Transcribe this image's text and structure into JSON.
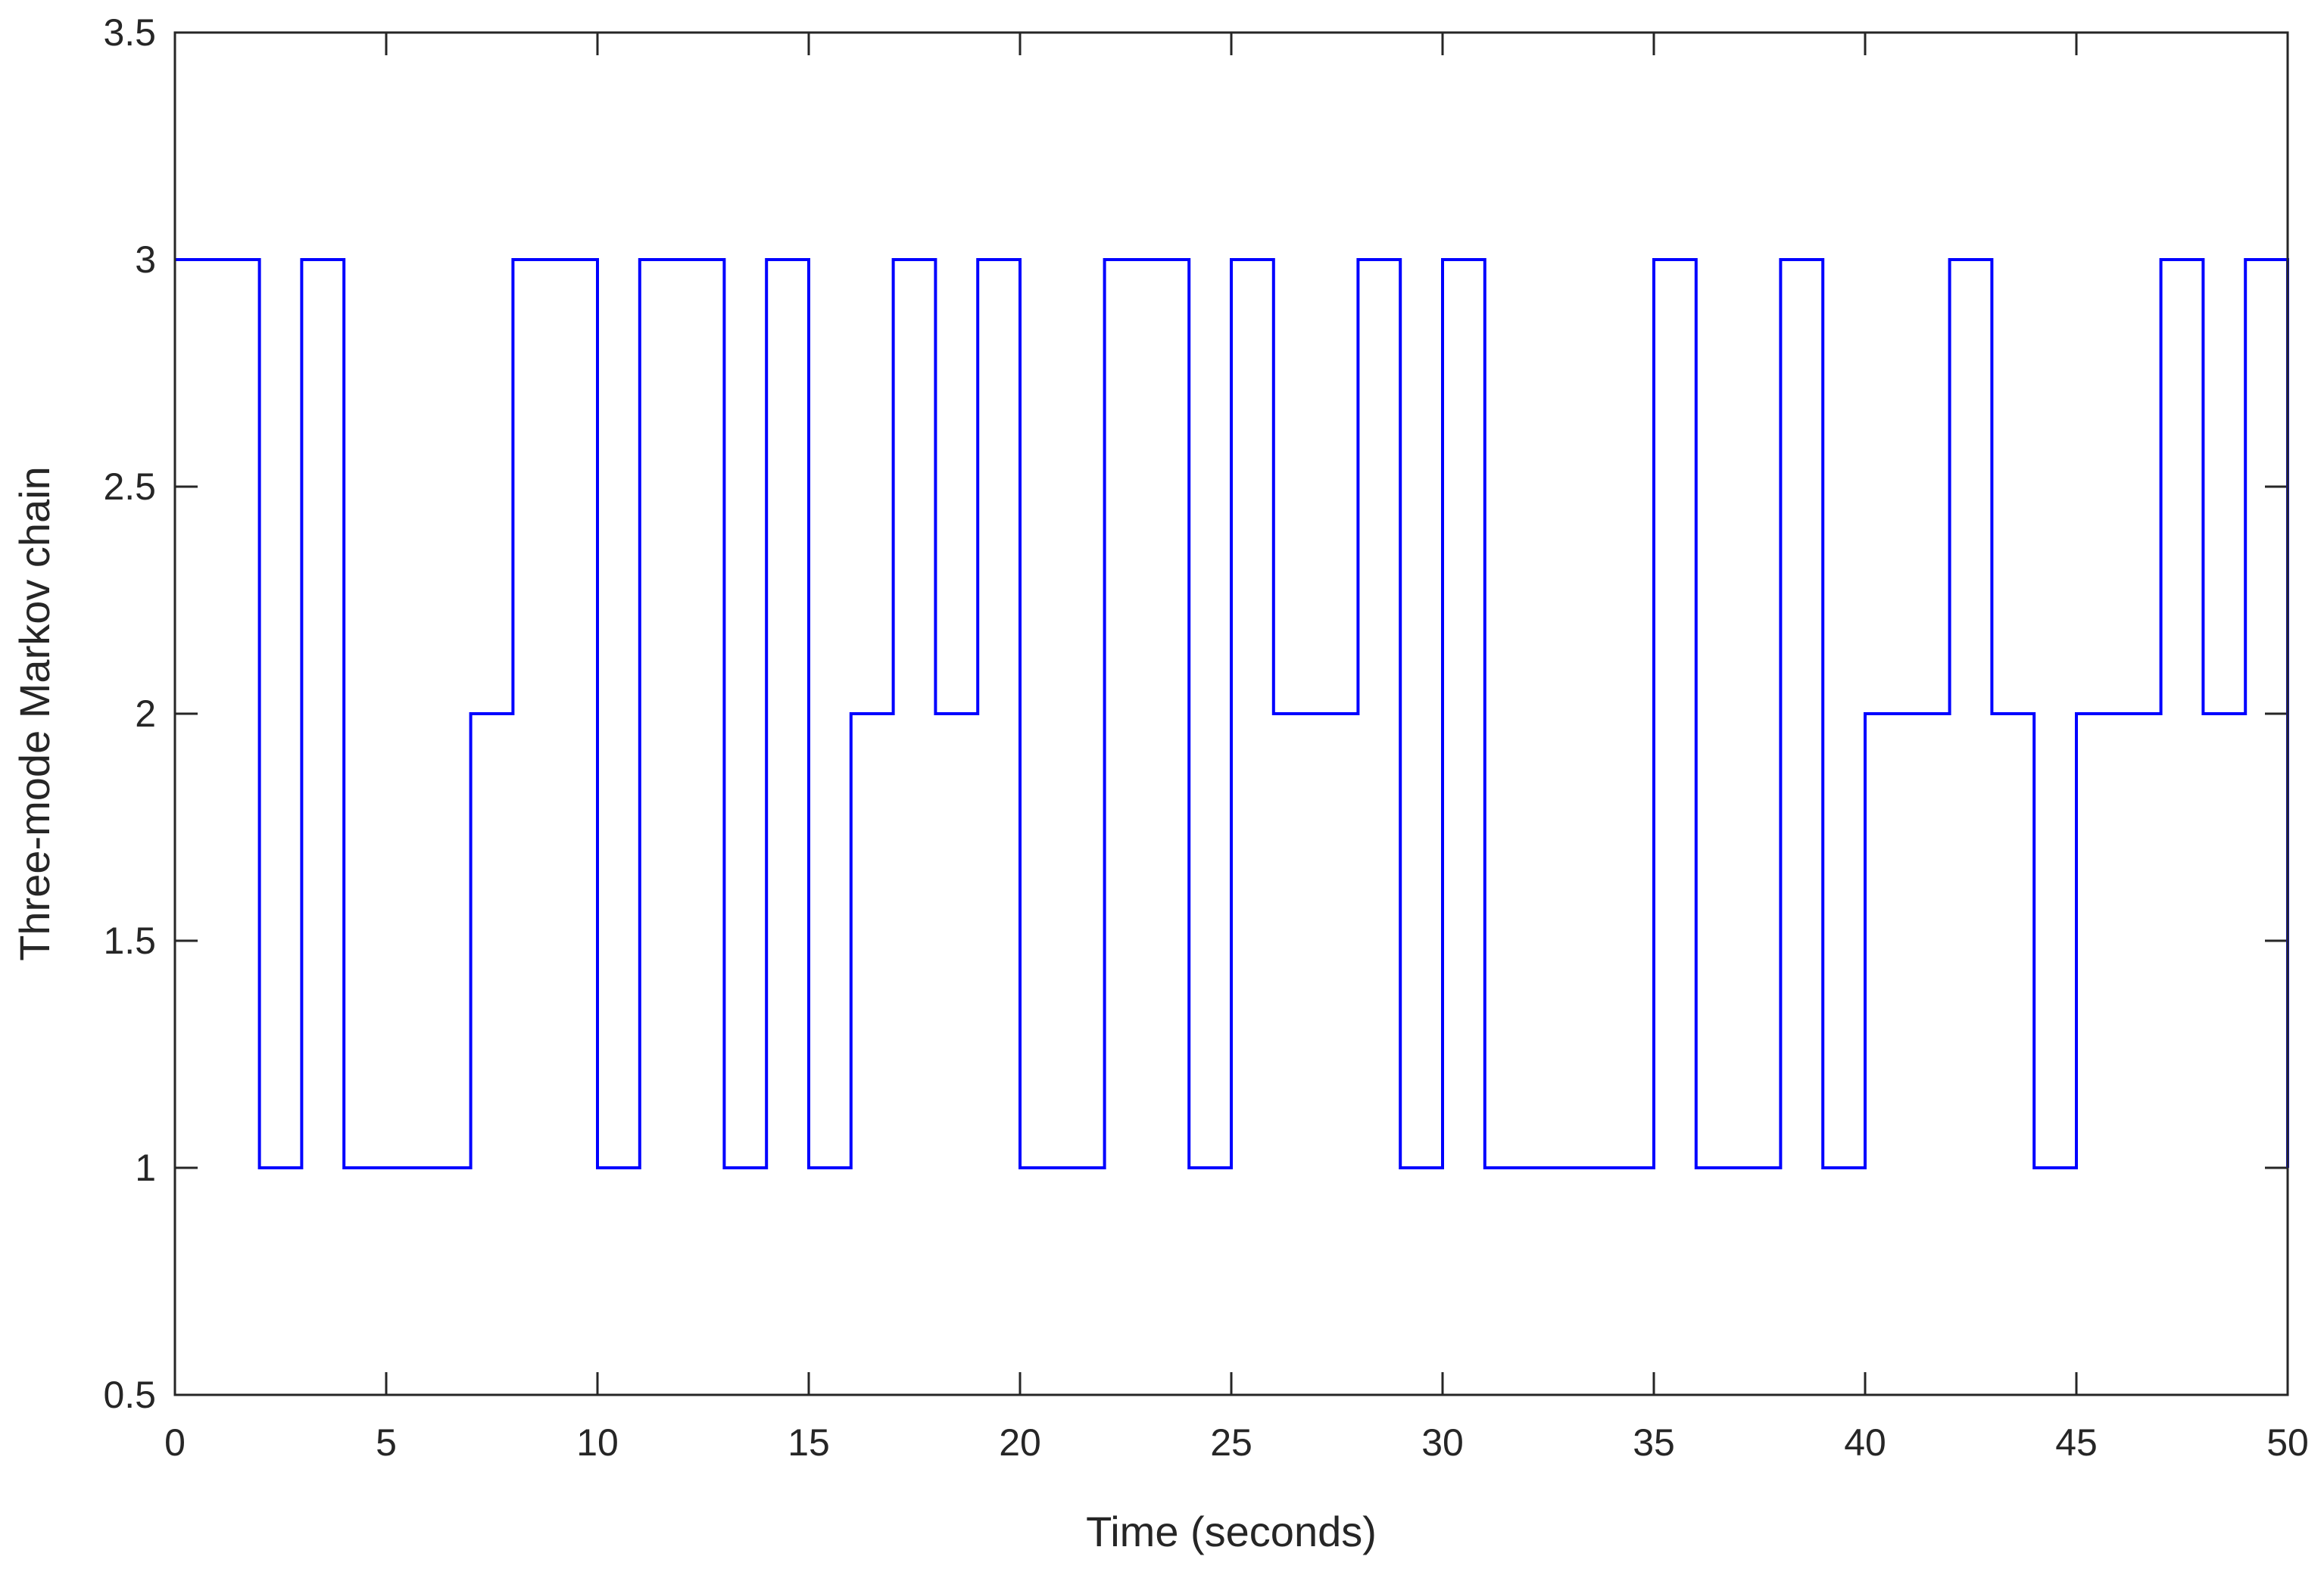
{
  "chart_data": {
    "type": "line",
    "step": "post",
    "title": "",
    "xlabel": "Time (seconds)",
    "ylabel": "Three-mode Markov chain",
    "xlim": [
      0,
      50
    ],
    "ylim": [
      0.5,
      3.5
    ],
    "xticks": [
      0,
      5,
      10,
      15,
      20,
      25,
      30,
      35,
      40,
      45,
      50
    ],
    "yticks": [
      0.5,
      1,
      1.5,
      2,
      2.5,
      3,
      3.5
    ],
    "xtick_labels": [
      "0",
      "5",
      "10",
      "15",
      "20",
      "25",
      "30",
      "35",
      "40",
      "45",
      "50"
    ],
    "ytick_labels": [
      "0.5",
      "1",
      "1.5",
      "2",
      "2.5",
      "3",
      "3.5"
    ],
    "grid": false,
    "series": [
      {
        "color": "#0000ff",
        "x": [
          0,
          1,
          2,
          3,
          4,
          5,
          6,
          7,
          8,
          9,
          10,
          11,
          12,
          13,
          14,
          15,
          16,
          17,
          18,
          19,
          20,
          21,
          22,
          23,
          24,
          25,
          26,
          27,
          28,
          29,
          30,
          31,
          32,
          33,
          34,
          35,
          36,
          37,
          38,
          39,
          40,
          41,
          42,
          43,
          44,
          45,
          46,
          47,
          48,
          49,
          50
        ],
        "y": [
          3,
          3,
          1,
          3,
          1,
          1,
          1,
          2,
          3,
          3,
          1,
          3,
          3,
          1,
          3,
          1,
          2,
          3,
          2,
          3,
          1,
          1,
          3,
          3,
          1,
          3,
          2,
          2,
          3,
          1,
          3,
          1,
          1,
          1,
          1,
          3,
          1,
          1,
          3,
          1,
          2,
          2,
          3,
          2,
          1,
          2,
          2,
          3,
          2,
          3,
          1
        ]
      }
    ]
  }
}
